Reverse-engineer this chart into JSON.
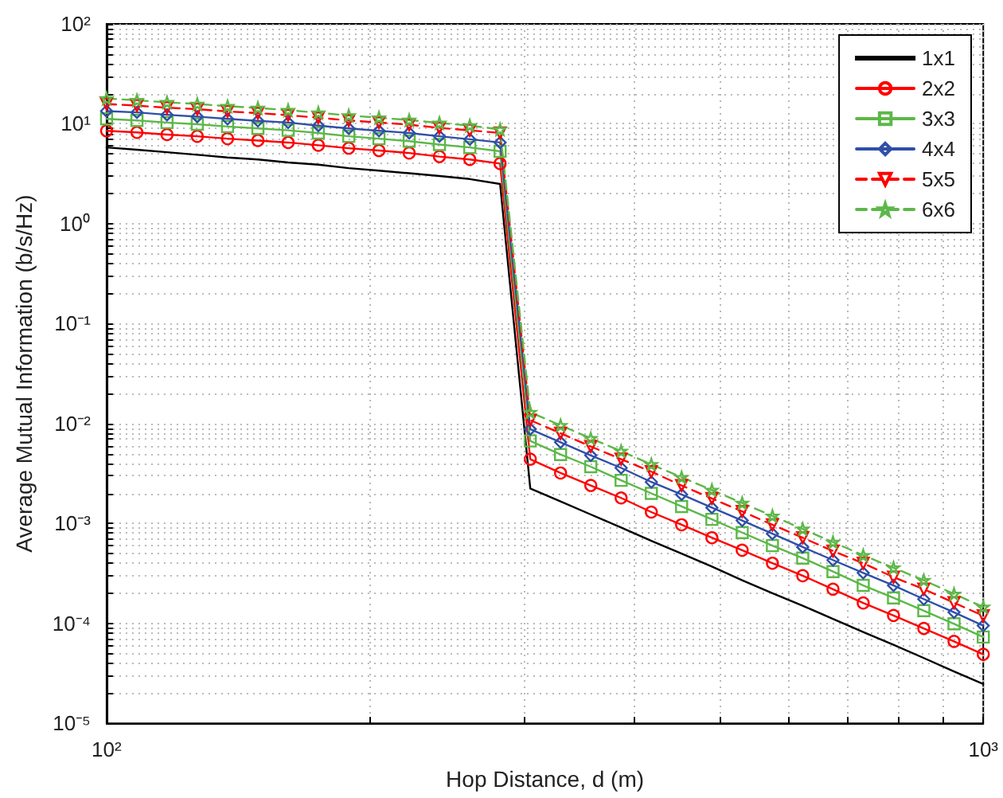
{
  "chart_data": {
    "type": "line",
    "xlabel": "Hop Distance, d (m)",
    "ylabel": "Average Mutual Information (b/s/Hz)",
    "log": "xy",
    "grid": true,
    "legend": "top right",
    "x": [
      100,
      108.3,
      117.2,
      126.9,
      137.4,
      148.8,
      161.1,
      174.4,
      188.9,
      204.5,
      221.4,
      239.7,
      259.6,
      281.1,
      304.3,
      329.5,
      356.7,
      386.3,
      418.2,
      452.8,
      490.3,
      530.9,
      574.8,
      622.4,
      673.9,
      729.6,
      790.0,
      855.4,
      926.1,
      1000
    ],
    "xlim": [
      100,
      1000
    ],
    "xticks": [
      {
        "value": 100,
        "label": "10²"
      },
      {
        "value": 200,
        "label": null
      },
      {
        "value": 300,
        "label": null
      },
      {
        "value": 400,
        "label": null
      },
      {
        "value": 500,
        "label": null
      },
      {
        "value": 600,
        "label": null
      },
      {
        "value": 700,
        "label": null
      },
      {
        "value": 800,
        "label": null
      },
      {
        "value": 900,
        "label": null
      },
      {
        "value": 1000,
        "label": "10³"
      }
    ],
    "ylim": [
      1e-05,
      100
    ],
    "yticks": [
      {
        "value": 1e-05,
        "label": "10⁻⁵"
      },
      {
        "value": 2e-05,
        "label": null
      },
      {
        "value": 3e-05,
        "label": null
      },
      {
        "value": 4e-05,
        "label": null
      },
      {
        "value": 5e-05,
        "label": null
      },
      {
        "value": 6e-05,
        "label": null
      },
      {
        "value": 7e-05,
        "label": null
      },
      {
        "value": 8e-05,
        "label": null
      },
      {
        "value": 9e-05,
        "label": null
      },
      {
        "value": 0.0001,
        "label": "10⁻⁴"
      },
      {
        "value": 0.0002,
        "label": null
      },
      {
        "value": 0.0003,
        "label": null
      },
      {
        "value": 0.0004,
        "label": null
      },
      {
        "value": 0.0005,
        "label": null
      },
      {
        "value": 0.0006,
        "label": null
      },
      {
        "value": 0.0007,
        "label": null
      },
      {
        "value": 0.0008,
        "label": null
      },
      {
        "value": 0.0009,
        "label": null
      },
      {
        "value": 0.001,
        "label": "10⁻³"
      },
      {
        "value": 0.002,
        "label": null
      },
      {
        "value": 0.003,
        "label": null
      },
      {
        "value": 0.004,
        "label": null
      },
      {
        "value": 0.005,
        "label": null
      },
      {
        "value": 0.006,
        "label": null
      },
      {
        "value": 0.007,
        "label": null
      },
      {
        "value": 0.008,
        "label": null
      },
      {
        "value": 0.009,
        "label": null
      },
      {
        "value": 0.01,
        "label": "10⁻²"
      },
      {
        "value": 0.02,
        "label": null
      },
      {
        "value": 0.03,
        "label": null
      },
      {
        "value": 0.04,
        "label": null
      },
      {
        "value": 0.05,
        "label": null
      },
      {
        "value": 0.06,
        "label": null
      },
      {
        "value": 0.07,
        "label": null
      },
      {
        "value": 0.08,
        "label": null
      },
      {
        "value": 0.09,
        "label": null
      },
      {
        "value": 0.1,
        "label": "10⁻¹"
      },
      {
        "value": 0.2,
        "label": null
      },
      {
        "value": 0.3,
        "label": null
      },
      {
        "value": 0.4,
        "label": null
      },
      {
        "value": 0.5,
        "label": null
      },
      {
        "value": 0.6,
        "label": null
      },
      {
        "value": 0.7,
        "label": null
      },
      {
        "value": 0.8,
        "label": null
      },
      {
        "value": 0.9,
        "label": null
      },
      {
        "value": 1,
        "label": "10⁰"
      },
      {
        "value": 2,
        "label": null
      },
      {
        "value": 3,
        "label": null
      },
      {
        "value": 4,
        "label": null
      },
      {
        "value": 5,
        "label": null
      },
      {
        "value": 6,
        "label": null
      },
      {
        "value": 7,
        "label": null
      },
      {
        "value": 8,
        "label": null
      },
      {
        "value": 9,
        "label": null
      },
      {
        "value": 10,
        "label": "10¹"
      },
      {
        "value": 20,
        "label": null
      },
      {
        "value": 30,
        "label": null
      },
      {
        "value": 40,
        "label": null
      },
      {
        "value": 50,
        "label": null
      },
      {
        "value": 60,
        "label": null
      },
      {
        "value": 70,
        "label": null
      },
      {
        "value": 80,
        "label": null
      },
      {
        "value": 90,
        "label": null
      },
      {
        "value": 100,
        "label": "10²"
      }
    ],
    "series": [
      {
        "name": "1x1",
        "color": "#000000",
        "marker": "none",
        "line_style": "solid",
        "values": [
          5.8,
          5.5,
          5.2,
          4.9,
          4.6,
          4.4,
          4.1,
          3.9,
          3.6,
          3.4,
          3.2,
          3.0,
          2.8,
          2.5,
          0.00224,
          0.00166,
          0.00123,
          0.00091,
          0.00067,
          0.0005,
          0.00037,
          0.00027,
          0.0002,
          0.00015,
          0.000111,
          8.2e-05,
          6.1e-05,
          4.5e-05,
          3.3e-05,
          2.47e-05
        ]
      },
      {
        "name": "2x2",
        "color": "#ff0000",
        "marker": "circle",
        "line_style": "solid",
        "values": [
          8.5,
          8.2,
          7.8,
          7.5,
          7.1,
          6.8,
          6.5,
          6.1,
          5.7,
          5.4,
          5.1,
          4.7,
          4.4,
          4.0,
          0.0044,
          0.0032,
          0.0024,
          0.0018,
          0.0013,
          0.00097,
          0.00072,
          0.00054,
          0.0004,
          0.0003,
          0.00022,
          0.00016,
          0.00012,
          8.9e-05,
          6.6e-05,
          4.9e-05
        ]
      },
      {
        "name": "3x3",
        "color": "#5cb848",
        "marker": "square",
        "line_style": "solid",
        "values": [
          11.2,
          10.8,
          10.3,
          9.9,
          9.4,
          9.0,
          8.6,
          8.1,
          7.5,
          7.1,
          6.7,
          6.2,
          5.8,
          5.3,
          0.0067,
          0.0049,
          0.0037,
          0.0027,
          0.002,
          0.00148,
          0.0011,
          0.00081,
          0.0006,
          0.00045,
          0.00033,
          0.00024,
          0.00018,
          0.000134,
          9.9e-05,
          7.3e-05
        ]
      },
      {
        "name": "4x4",
        "color": "#2f4fa8",
        "marker": "diamond",
        "line_style": "solid",
        "values": [
          13.4,
          13.0,
          12.3,
          11.8,
          11.2,
          10.7,
          10.3,
          9.6,
          9.0,
          8.5,
          8.1,
          7.5,
          7.0,
          6.5,
          0.0088,
          0.0065,
          0.0048,
          0.0036,
          0.0026,
          0.00195,
          0.00144,
          0.00107,
          0.00079,
          0.00058,
          0.00043,
          0.00032,
          0.00024,
          0.000175,
          0.000129,
          9.5e-05
        ]
      },
      {
        "name": "5x5",
        "color": "#ff0000",
        "marker": "triangle-down",
        "line_style": "dashed",
        "values": [
          15.8,
          15.2,
          14.5,
          14.0,
          13.3,
          12.8,
          12.2,
          11.5,
          10.8,
          10.3,
          9.8,
          9.1,
          8.6,
          8.1,
          0.0108,
          0.008,
          0.0059,
          0.0044,
          0.0033,
          0.0024,
          0.00178,
          0.00132,
          0.00097,
          0.00072,
          0.00053,
          0.0004,
          0.00029,
          0.00022,
          0.000161,
          0.000119
        ]
      },
      {
        "name": "6x6",
        "color": "#5cb848",
        "marker": "star",
        "line_style": "dashed",
        "values": [
          17.9,
          17.2,
          16.4,
          15.8,
          15.0,
          14.4,
          13.7,
          12.9,
          12.1,
          11.5,
          10.9,
          10.2,
          9.6,
          8.8,
          0.013,
          0.0096,
          0.0071,
          0.0053,
          0.0039,
          0.0029,
          0.00216,
          0.0016,
          0.00119,
          0.00088,
          0.00065,
          0.00048,
          0.00036,
          0.00027,
          0.000197,
          0.000146
        ]
      }
    ]
  }
}
